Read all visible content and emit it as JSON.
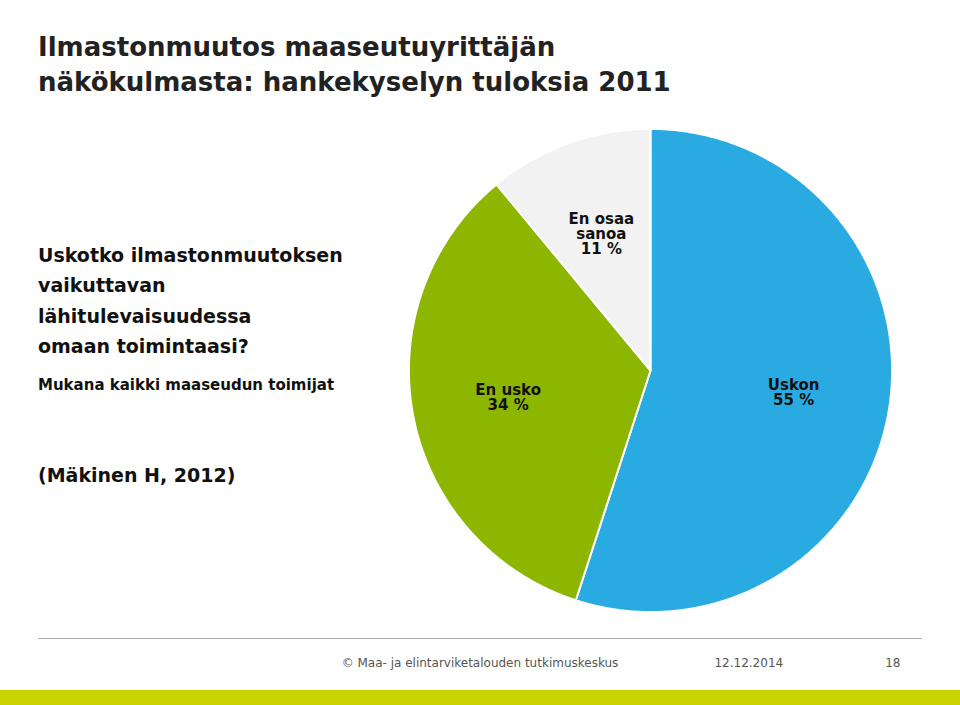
{
  "chart_data": {
    "type": "pie",
    "title": "Ilmastonmuutos maaseutuyrittäjän\nnäkökulmasta: hankekyselyn tuloksia 2011",
    "subtitle": "Mukana kaikki maaseudun toimijat",
    "annotations": [
      "Uskotko ilmastonmuutoksen\nvaikuttavan lähitulevaisuudessa\nomaan toimintaasi?",
      "(Mäkinen H, 2012)",
      "© Maa- ja elintarviketalouden tutkimuskeskus",
      "12.12.2014",
      "18"
    ],
    "categories": [
      "Uskon",
      "En usko",
      "En osaa\nsanoa"
    ],
    "values": [
      55,
      34,
      11
    ],
    "value_labels": [
      "55 %",
      "34 %",
      "11 %"
    ],
    "colors": [
      "#29abe2",
      "#8db600",
      "#f2f2f2"
    ],
    "data_labels": true
  }
}
